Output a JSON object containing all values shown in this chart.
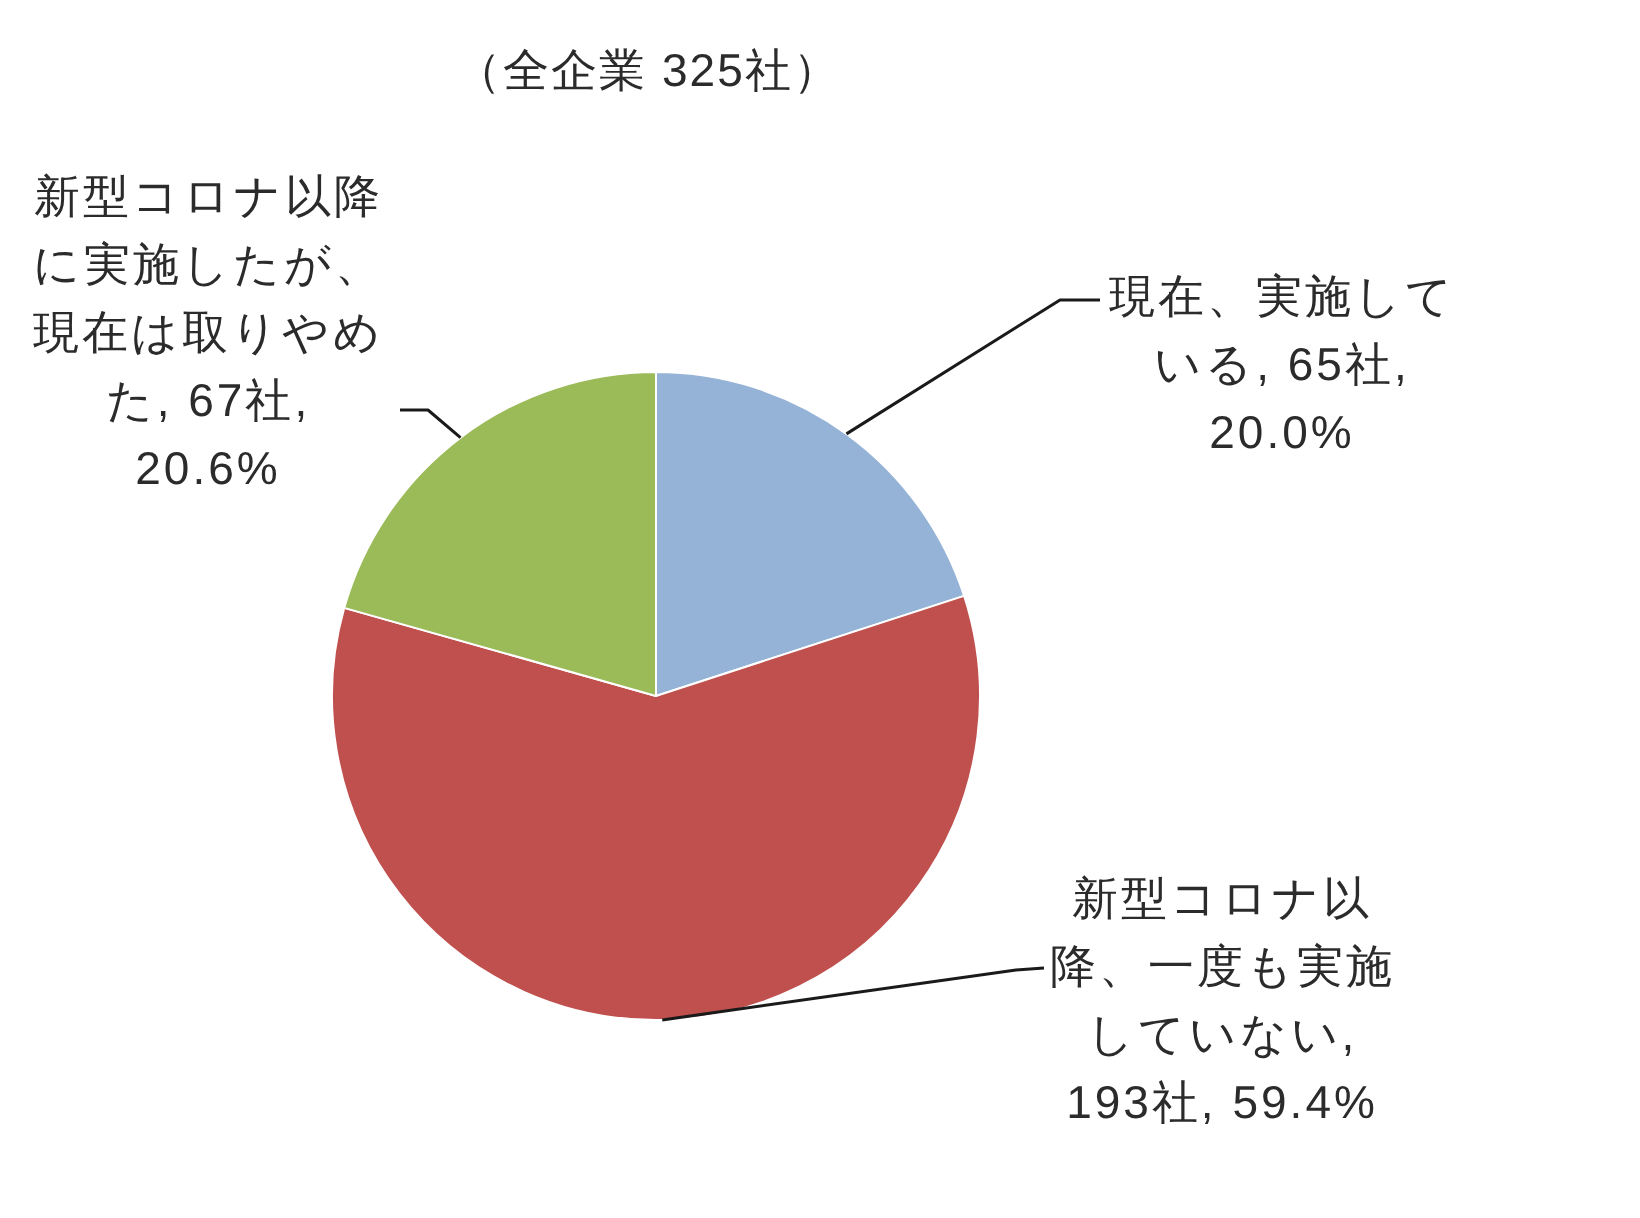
{
  "chart_data": {
    "type": "pie",
    "title": "（全企業 325社）",
    "categories": [
      "現在、実施している",
      "新型コロナ以降、一度も実施していない",
      "新型コロナ以降に実施したが、現在は取りやめた"
    ],
    "values": [
      65,
      193,
      67
    ],
    "colors": [
      "#95b3d7",
      "#c0504d",
      "#9bbb59"
    ],
    "value_labels": [
      ", 65社, 20.0%",
      ", 193社, 59.4%",
      ", 67社, 20.6%"
    ]
  }
}
